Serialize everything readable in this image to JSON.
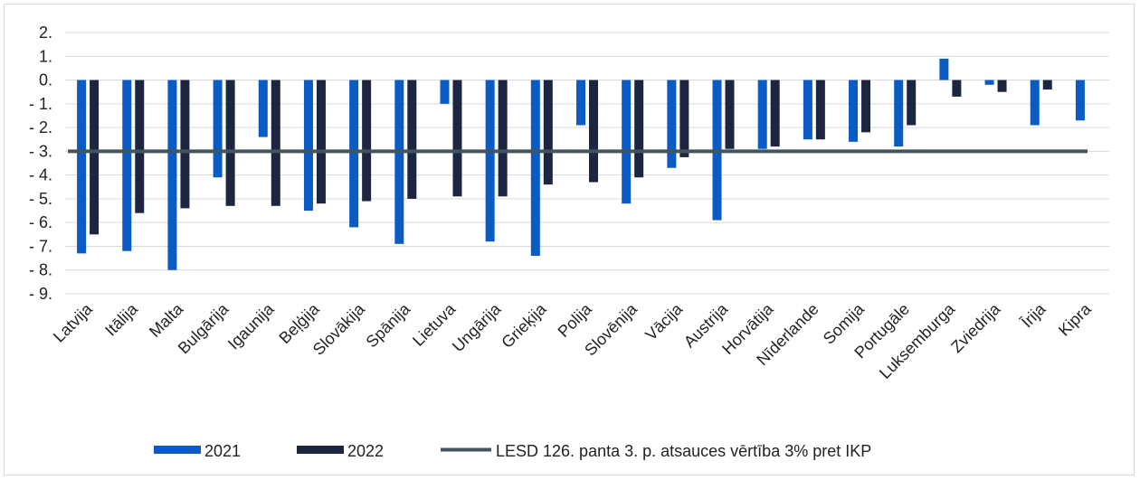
{
  "chart_data": {
    "type": "bar",
    "categories": [
      "Latvija",
      "Itālija",
      "Malta",
      "Bulgārija",
      "Igaunija",
      "Beļģija",
      "Slovākija",
      "Spānija",
      "Lietuva",
      "Ungārija",
      "Grieķija",
      "Polija",
      "Slovēnija",
      "Vācija",
      "Austrija",
      "Horvātija",
      "Nīderlande",
      "Somija",
      "Portugāle",
      "Luksemburga",
      "Zviedrija",
      "Īrija",
      "Kipra"
    ],
    "series": [
      {
        "name": "2021",
        "color": "#0a5bc4",
        "values": [
          -7.3,
          -7.2,
          -8.0,
          -4.1,
          -2.4,
          -5.5,
          -6.2,
          -6.9,
          -1.0,
          -6.8,
          -7.4,
          -1.9,
          -5.2,
          -3.7,
          -5.9,
          -2.9,
          -2.5,
          -2.6,
          -2.8,
          0.9,
          -0.2,
          -1.9,
          -1.7
        ]
      },
      {
        "name": "2022",
        "color": "#1c2640",
        "values": [
          -6.5,
          -5.6,
          -5.4,
          -5.3,
          -5.3,
          -5.2,
          -5.1,
          -5.0,
          -4.9,
          -4.9,
          -4.4,
          -4.3,
          -4.1,
          -3.25,
          -2.9,
          -2.8,
          -2.5,
          -2.2,
          -1.9,
          -0.7,
          -0.5,
          -0.4,
          null
        ]
      }
    ],
    "reference_line": {
      "name": "LESD 126. panta 3. p. atsauces vērtība 3% pret IKP",
      "value": -3.0,
      "color": "#44545e"
    },
    "yticks": [
      {
        "value": 2,
        "label": "2."
      },
      {
        "value": 1,
        "label": "1."
      },
      {
        "value": 0,
        "label": "0."
      },
      {
        "value": -1,
        "label": "- 1."
      },
      {
        "value": -2,
        "label": "- 2."
      },
      {
        "value": -3,
        "label": "- 3."
      },
      {
        "value": -4,
        "label": "- 4."
      },
      {
        "value": -5,
        "label": "- 5."
      },
      {
        "value": -6,
        "label": "- 6."
      },
      {
        "value": -7,
        "label": "- 7."
      },
      {
        "value": -8,
        "label": "- 8."
      },
      {
        "value": -9,
        "label": "- 9."
      }
    ],
    "ylim": [
      -9,
      2
    ],
    "grid": true,
    "legend_position": "bottom"
  }
}
